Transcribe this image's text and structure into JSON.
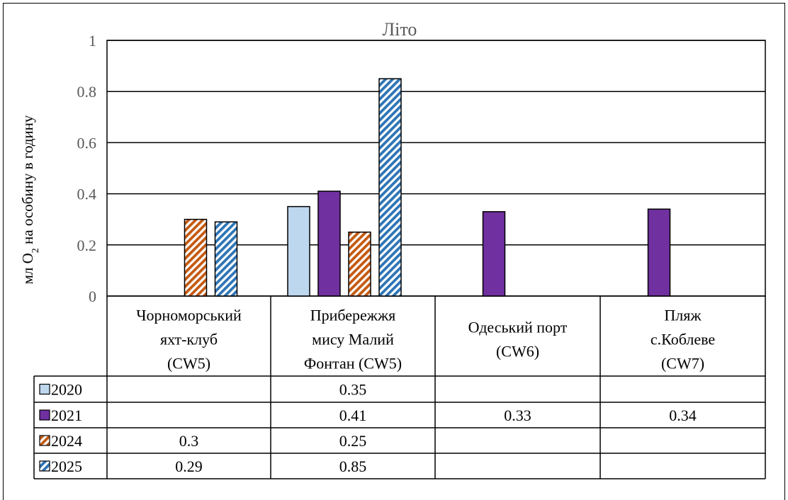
{
  "chart_data": {
    "type": "bar",
    "title": "Літо",
    "ylabel_parts": [
      "мл O",
      "2",
      " на особину в годину"
    ],
    "ylim": [
      0,
      1
    ],
    "yticks": [
      "0",
      "0.2",
      "0.4",
      "0.6",
      "0.8",
      "1"
    ],
    "ytick_values": [
      0,
      0.2,
      0.4,
      0.6,
      0.8,
      1
    ],
    "grid": true,
    "categories": [
      [
        "Чорноморський",
        "яхт-клуб",
        "(CW5)"
      ],
      [
        "Прибережжя",
        "мису Малий",
        "Фонтан (CW5)"
      ],
      [
        "Одеський порт",
        "(CW6)"
      ],
      [
        "Пляж",
        "с.Коблеве",
        "(CW7)"
      ]
    ],
    "series": [
      {
        "name": "2020",
        "values": [
          null,
          0.35,
          null,
          null
        ],
        "labels": [
          "",
          "0.35",
          "",
          ""
        ],
        "color": "#bdd7ee",
        "pattern": "solid"
      },
      {
        "name": "2021",
        "values": [
          null,
          0.41,
          0.33,
          0.34
        ],
        "labels": [
          "",
          "0.41",
          "0.33",
          "0.34"
        ],
        "color": "#7030a0",
        "pattern": "solid"
      },
      {
        "name": "2024",
        "values": [
          0.3,
          0.25,
          null,
          null
        ],
        "labels": [
          "0.3",
          "0.25",
          "",
          ""
        ],
        "color": "#c55a11",
        "pattern": "stripes"
      },
      {
        "name": "2025",
        "values": [
          0.29,
          0.85,
          null,
          null
        ],
        "labels": [
          "0.29",
          "0.85",
          "",
          ""
        ],
        "color": "#2e75b6",
        "pattern": "stripes"
      }
    ],
    "legend_placement": "data-table"
  }
}
